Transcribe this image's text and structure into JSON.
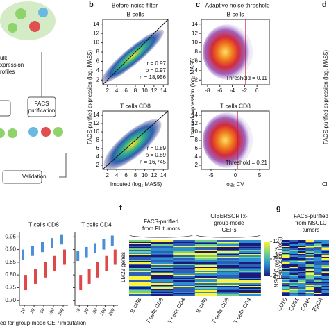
{
  "panel_a": {
    "texts": [
      "ulk",
      "xpression",
      "rofiles",
      "FACS",
      "purification",
      "Validation"
    ]
  },
  "panel_b": {
    "label": "b",
    "title": "Before noise filter",
    "y_label": "FACS-purified expression (log₂ MAS5)",
    "x_label": "Imputed (log₂ MAS5)",
    "lim": [
      1,
      15
    ],
    "ticks": [
      2,
      4,
      6,
      8,
      10,
      12,
      14
    ],
    "plots": [
      {
        "name": "B cells",
        "stats": [
          "r = 0.97",
          "ρ = 0.97",
          "n = 18,956"
        ]
      },
      {
        "name": "T cells CD8",
        "stats": [
          "r = 0.89",
          "ρ = 0.89",
          "n = 16,745"
        ]
      }
    ]
  },
  "panel_c": {
    "label": "c",
    "title": "Adaptive noise threshold",
    "y_label": "Imputed expression (log₂ MAS5)",
    "x_label": "log₂ CV",
    "ylim": [
      1,
      15
    ],
    "yticks": [
      2,
      4,
      6,
      8,
      10,
      12,
      14
    ],
    "plots": [
      {
        "name": "B cells",
        "xlim": [
          -9,
          2
        ],
        "xticks": [
          -8,
          -6,
          -4,
          -2,
          0
        ],
        "threshold": "Threshold = 0.11"
      },
      {
        "name": "T cells CD8",
        "xlim": [
          -7,
          7
        ],
        "xticks": [
          -5,
          0,
          5
        ],
        "threshold": "Threshold = 0.21"
      }
    ]
  },
  "panel_d": {
    "label": "d",
    "y_label": "FACS-purified expression (log₂ MAS5)",
    "x_label": "Cl"
  },
  "panel_e": {
    "plots": [
      "T cells CD8",
      "T cells CD4"
    ],
    "ylim": [
      0.68,
      0.97
    ],
    "yticks": [
      {
        "value": 0.95,
        "label": "0.95"
      },
      {
        "value": 0.9,
        "label": "0.90"
      },
      {
        "value": 0.85,
        "label": "0.85"
      },
      {
        "value": 0.8,
        "label": "0.80"
      },
      {
        "value": 0.75,
        "label": "0.75"
      },
      {
        "value": 0.7,
        "label": "0.70"
      }
    ],
    "xticks": [
      10,
      20,
      50,
      100,
      200
    ],
    "x_label": "ed for group-mode GEP imputation"
  },
  "panel_f": {
    "label": "f",
    "group1": [
      "FACS-purified",
      "from FL tumors"
    ],
    "group2": [
      "CIBERSORTx-",
      "group-mode",
      "GEPs"
    ],
    "y_label": "LM22 genes",
    "colorbar_label": "Expression (log₂)",
    "colorbar_ticks": [
      12,
      7,
      2
    ],
    "colorbar_lim": [
      2,
      12
    ],
    "columns": [
      "B cells",
      "T cells CD8",
      "T cells CD4",
      "B cells",
      "T cells CD8",
      "T cells CD4"
    ]
  },
  "panel_g": {
    "label": "g",
    "group": [
      "FACS-purified",
      "from NSCLC",
      "tumors"
    ],
    "y_label": "NSCLC markers",
    "columns": [
      "CD10",
      "CD31",
      "CD45",
      "EpCA"
    ]
  }
}
